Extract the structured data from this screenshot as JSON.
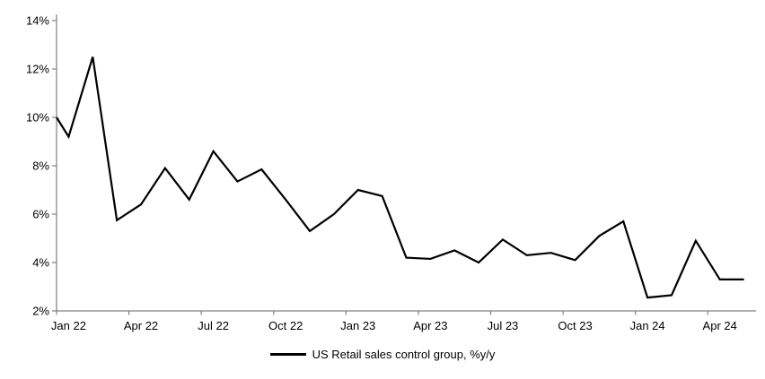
{
  "figure": {
    "background": "#ffffff"
  },
  "chart_data": {
    "type": "line",
    "title": "",
    "xlabel": "",
    "ylabel": "",
    "legend": "US Retail sales control group, %y/y",
    "legend_position": "bottom-center",
    "grid": false,
    "line_color": "#000000",
    "axis_color": "#808080",
    "text_color": "#000000",
    "ylim": [
      2,
      14
    ],
    "y_ticks": [
      14,
      12,
      10,
      8,
      6,
      4,
      2
    ],
    "y_tick_labels": [
      "14%",
      "12%",
      "10%",
      "8%",
      "6%",
      "4%",
      "2%"
    ],
    "x_tick_labels": [
      "Jan 22",
      "Apr 22",
      "Jul 22",
      "Oct 22",
      "Jan 23",
      "Apr 23",
      "Jul 23",
      "Oct 23",
      "Jan 24",
      "Apr 24"
    ],
    "x_tick_label_indices": [
      0,
      3,
      6,
      9,
      12,
      15,
      18,
      21,
      24,
      27
    ],
    "lead_in_value": 10.0,
    "categories": [
      "Jan 22",
      "Feb 22",
      "Mar 22",
      "Apr 22",
      "May 22",
      "Jun 22",
      "Jul 22",
      "Aug 22",
      "Sep 22",
      "Oct 22",
      "Nov 22",
      "Dec 22",
      "Jan 23",
      "Feb 23",
      "Mar 23",
      "Apr 23",
      "May 23",
      "Jun 23",
      "Jul 23",
      "Aug 23",
      "Sep 23",
      "Oct 23",
      "Nov 23",
      "Dec 23",
      "Jan 24",
      "Feb 24",
      "Mar 24",
      "Apr 24",
      "May 24"
    ],
    "values": [
      9.2,
      12.5,
      5.75,
      6.4,
      7.9,
      6.6,
      8.6,
      7.35,
      7.85,
      6.6,
      5.3,
      6.0,
      7.0,
      6.75,
      4.2,
      4.15,
      4.5,
      4.0,
      4.95,
      4.3,
      4.4,
      4.1,
      5.1,
      5.7,
      2.55,
      2.65,
      4.9,
      3.3,
      3.3
    ]
  }
}
